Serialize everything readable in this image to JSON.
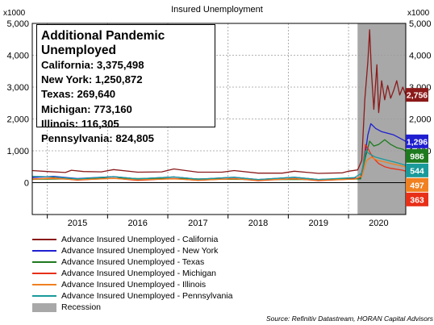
{
  "chart_data": {
    "type": "line",
    "title": "Insured Unemployment",
    "left_unit": "x1000",
    "right_unit": "x1000",
    "ylim": [
      -1000,
      5000
    ],
    "y_ticks": [
      "5,000",
      "4,000",
      "3,000",
      "2,000",
      "1,000",
      "0"
    ],
    "x_ticks": [
      "2015",
      "2016",
      "2017",
      "2018",
      "2019",
      "2020"
    ],
    "recession": {
      "label": "Recession",
      "start": 2020.15,
      "end": 2020.95
    },
    "series": [
      {
        "name": "Advance Insured Unemployed - California",
        "color": "#8b1a1a",
        "last": 2756,
        "last_label": "2,756",
        "points": [
          [
            2014.75,
            380
          ],
          [
            2015.0,
            350
          ],
          [
            2015.3,
            320
          ],
          [
            2015.4,
            390
          ],
          [
            2015.6,
            350
          ],
          [
            2015.9,
            340
          ],
          [
            2016.1,
            410
          ],
          [
            2016.5,
            330
          ],
          [
            2016.9,
            340
          ],
          [
            2017.1,
            430
          ],
          [
            2017.5,
            330
          ],
          [
            2017.9,
            330
          ],
          [
            2018.1,
            380
          ],
          [
            2018.5,
            300
          ],
          [
            2018.9,
            300
          ],
          [
            2019.1,
            360
          ],
          [
            2019.5,
            290
          ],
          [
            2019.9,
            310
          ],
          [
            2020.0,
            360
          ],
          [
            2020.15,
            400
          ],
          [
            2020.22,
            700
          ],
          [
            2020.27,
            2600
          ],
          [
            2020.32,
            3800
          ],
          [
            2020.35,
            4800
          ],
          [
            2020.38,
            3500
          ],
          [
            2020.42,
            2300
          ],
          [
            2020.47,
            3700
          ],
          [
            2020.5,
            2200
          ],
          [
            2020.55,
            3200
          ],
          [
            2020.6,
            2600
          ],
          [
            2020.65,
            3050
          ],
          [
            2020.7,
            2650
          ],
          [
            2020.75,
            2900
          ],
          [
            2020.8,
            3200
          ],
          [
            2020.85,
            2750
          ],
          [
            2020.9,
            3000
          ],
          [
            2020.95,
            2756
          ]
        ]
      },
      {
        "name": "Advance Insured Unemployed - New York",
        "color": "#1f1fd0",
        "last": 1296,
        "last_label": "1,296",
        "points": [
          [
            2014.75,
            160
          ],
          [
            2015.1,
            200
          ],
          [
            2015.5,
            130
          ],
          [
            2016.1,
            190
          ],
          [
            2016.5,
            120
          ],
          [
            2017.1,
            180
          ],
          [
            2017.5,
            110
          ],
          [
            2018.1,
            170
          ],
          [
            2018.5,
            100
          ],
          [
            2019.1,
            170
          ],
          [
            2019.5,
            100
          ],
          [
            2020.0,
            130
          ],
          [
            2020.2,
            150
          ],
          [
            2020.27,
            800
          ],
          [
            2020.32,
            1500
          ],
          [
            2020.37,
            1850
          ],
          [
            2020.45,
            1700
          ],
          [
            2020.55,
            1600
          ],
          [
            2020.65,
            1550
          ],
          [
            2020.75,
            1500
          ],
          [
            2020.85,
            1400
          ],
          [
            2020.95,
            1296
          ]
        ]
      },
      {
        "name": "Advance Insured Unemployed - Texas",
        "color": "#1e7a1e",
        "last": 986,
        "last_label": "986",
        "points": [
          [
            2014.75,
            110
          ],
          [
            2015.5,
            120
          ],
          [
            2016.0,
            140
          ],
          [
            2016.5,
            130
          ],
          [
            2017.0,
            130
          ],
          [
            2017.8,
            110
          ],
          [
            2018.5,
            100
          ],
          [
            2019.5,
            100
          ],
          [
            2020.2,
            120
          ],
          [
            2020.28,
            800
          ],
          [
            2020.35,
            1300
          ],
          [
            2020.42,
            1150
          ],
          [
            2020.5,
            1200
          ],
          [
            2020.6,
            1350
          ],
          [
            2020.7,
            1200
          ],
          [
            2020.8,
            1100
          ],
          [
            2020.9,
            1050
          ],
          [
            2020.95,
            986
          ]
        ]
      },
      {
        "name": "Advance Insured Unemployed - Michigan",
        "color": "#e83018",
        "last": 363,
        "last_label": "363",
        "points": [
          [
            2014.75,
            110
          ],
          [
            2015.1,
            150
          ],
          [
            2015.5,
            80
          ],
          [
            2016.1,
            140
          ],
          [
            2016.5,
            70
          ],
          [
            2017.1,
            130
          ],
          [
            2017.5,
            70
          ],
          [
            2018.1,
            130
          ],
          [
            2018.5,
            60
          ],
          [
            2019.1,
            130
          ],
          [
            2019.5,
            60
          ],
          [
            2020.1,
            120
          ],
          [
            2020.22,
            200
          ],
          [
            2020.28,
            1200
          ],
          [
            2020.33,
            1050
          ],
          [
            2020.4,
            800
          ],
          [
            2020.5,
            600
          ],
          [
            2020.6,
            500
          ],
          [
            2020.7,
            450
          ],
          [
            2020.8,
            420
          ],
          [
            2020.9,
            390
          ],
          [
            2020.95,
            363
          ]
        ]
      },
      {
        "name": "Advance Insured Unemployed - Illinois",
        "color": "#f08020",
        "last": 497,
        "last_label": "497",
        "points": [
          [
            2014.75,
            120
          ],
          [
            2015.1,
            130
          ],
          [
            2015.5,
            90
          ],
          [
            2016.1,
            130
          ],
          [
            2016.5,
            90
          ],
          [
            2017.1,
            120
          ],
          [
            2017.5,
            80
          ],
          [
            2018.1,
            120
          ],
          [
            2018.5,
            80
          ],
          [
            2019.1,
            120
          ],
          [
            2019.5,
            80
          ],
          [
            2020.1,
            110
          ],
          [
            2020.22,
            200
          ],
          [
            2020.3,
            700
          ],
          [
            2020.38,
            800
          ],
          [
            2020.48,
            700
          ],
          [
            2020.6,
            650
          ],
          [
            2020.7,
            600
          ],
          [
            2020.8,
            560
          ],
          [
            2020.9,
            520
          ],
          [
            2020.95,
            497
          ]
        ]
      },
      {
        "name": "Advance Insured Unemployed - Pennsylvania",
        "color": "#1a9a9a",
        "last": 544,
        "last_label": "544",
        "points": [
          [
            2014.75,
            200
          ],
          [
            2015.1,
            180
          ],
          [
            2015.5,
            120
          ],
          [
            2016.1,
            190
          ],
          [
            2016.5,
            120
          ],
          [
            2017.1,
            180
          ],
          [
            2017.5,
            110
          ],
          [
            2018.1,
            170
          ],
          [
            2018.5,
            100
          ],
          [
            2019.1,
            170
          ],
          [
            2019.5,
            100
          ],
          [
            2020.1,
            160
          ],
          [
            2020.22,
            300
          ],
          [
            2020.28,
            1000
          ],
          [
            2020.35,
            900
          ],
          [
            2020.45,
            800
          ],
          [
            2020.55,
            750
          ],
          [
            2020.65,
            700
          ],
          [
            2020.75,
            650
          ],
          [
            2020.85,
            600
          ],
          [
            2020.95,
            544
          ]
        ]
      }
    ]
  },
  "annotation": {
    "title": "Additional Pandemic Unemployed",
    "lines": [
      "California: 3,375,498",
      "New York: 1,250,872",
      "Texas: 269,640",
      "Michigan: 773,160",
      "Illinois: 116,305",
      "Pennsylvania: 824,805"
    ]
  },
  "legend": {
    "items": [
      {
        "label": "Advance Insured Unemployed - California",
        "color": "#8b1a1a",
        "kind": "line"
      },
      {
        "label": "Advance Insured Unemployed - New York",
        "color": "#1f1fd0",
        "kind": "line"
      },
      {
        "label": "Advance Insured Unemployed - Texas",
        "color": "#1e7a1e",
        "kind": "line"
      },
      {
        "label": "Advance Insured Unemployed - Michigan",
        "color": "#e83018",
        "kind": "line"
      },
      {
        "label": "Advance Insured Unemployed - Illinois",
        "color": "#f08020",
        "kind": "line"
      },
      {
        "label": "Advance Insured Unemployed - Pennsylvania",
        "color": "#1a9a9a",
        "kind": "line"
      },
      {
        "label": "Recession",
        "color": "#a8a8a8",
        "kind": "rect"
      }
    ]
  },
  "source": "Source: Refinitiv Datastream, HORAN Capital Advisors"
}
